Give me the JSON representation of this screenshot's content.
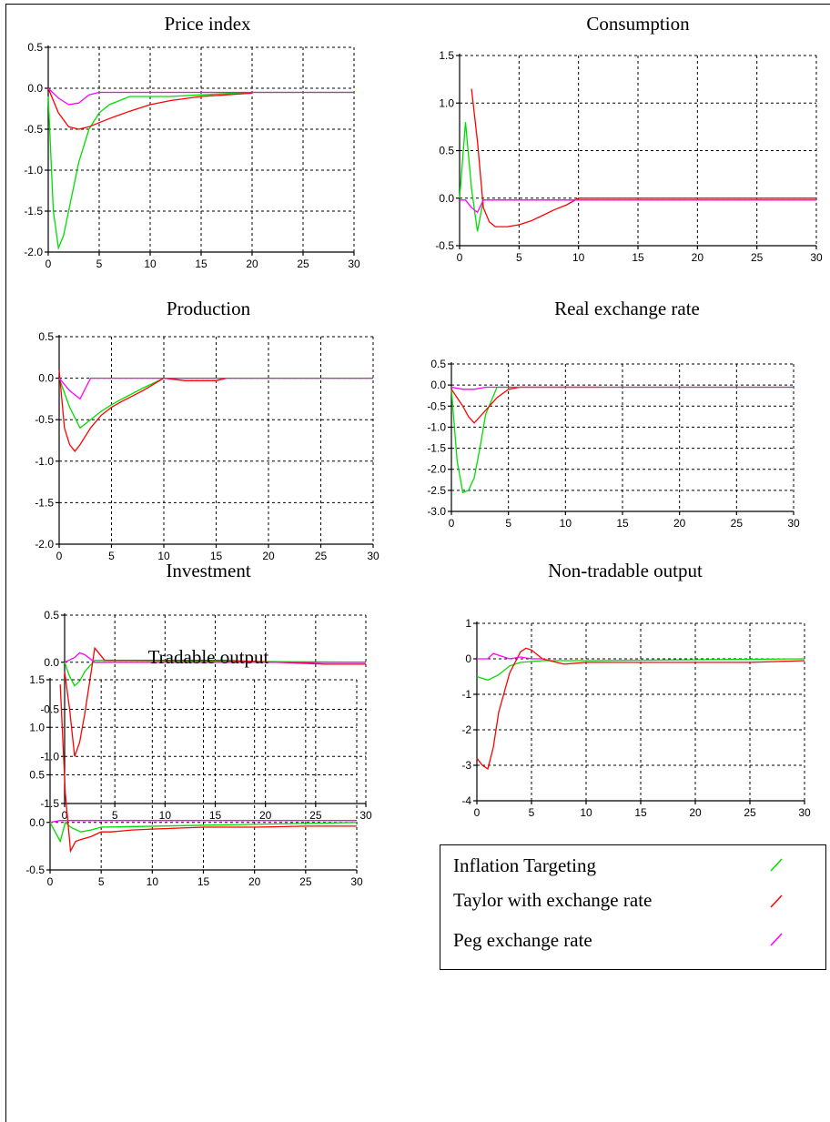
{
  "legend": {
    "items": [
      {
        "label": "Inflation Targeting",
        "color": "#00dd00"
      },
      {
        "label": "Taylor with exchange rate",
        "color": "#ff0000"
      },
      {
        "label": "Peg exchange rate",
        "color": "#ff00ff"
      }
    ]
  },
  "chart_data": [
    {
      "type": "line",
      "title": "Price index",
      "xlim": [
        0,
        30
      ],
      "ylim": [
        -2.0,
        0.5
      ],
      "xticks": [
        0,
        5,
        10,
        15,
        20,
        25,
        30
      ],
      "yticks": [
        0.5,
        0.0,
        -0.5,
        -1.0,
        -1.5,
        -2.0
      ],
      "xticklabels": [
        "0",
        "5",
        "10",
        "15",
        "20",
        "25",
        "30"
      ],
      "yticklabels": [
        "0.5",
        "0.0",
        "-0.5",
        "-1.0",
        "-1.5",
        "-2.0"
      ],
      "grid": true,
      "series": [
        {
          "color": "#00dd00",
          "x": [
            0,
            0.5,
            1,
            1.5,
            2,
            3,
            4,
            5,
            6,
            7,
            8,
            10,
            12,
            15,
            20,
            30
          ],
          "y": [
            -0.1,
            -1.5,
            -1.95,
            -1.8,
            -1.5,
            -0.9,
            -0.5,
            -0.3,
            -0.2,
            -0.15,
            -0.1,
            -0.1,
            -0.1,
            -0.08,
            -0.05,
            -0.05
          ]
        },
        {
          "color": "#ff0000",
          "x": [
            0,
            1,
            2,
            3,
            4,
            5,
            6,
            8,
            10,
            12,
            15,
            20
          ],
          "y": [
            0,
            -0.3,
            -0.47,
            -0.5,
            -0.47,
            -0.42,
            -0.37,
            -0.28,
            -0.2,
            -0.15,
            -0.1,
            -0.06
          ]
        },
        {
          "color": "#ff00ff",
          "x": [
            0,
            1,
            2,
            3,
            4,
            5,
            6,
            30
          ],
          "y": [
            0,
            -0.12,
            -0.2,
            -0.18,
            -0.08,
            -0.05,
            -0.05,
            -0.05
          ]
        }
      ]
    },
    {
      "type": "line",
      "title": "Consumption",
      "xlim": [
        0,
        30
      ],
      "ylim": [
        -0.5,
        1.5
      ],
      "xticks": [
        0,
        5,
        10,
        15,
        20,
        25,
        30
      ],
      "yticks": [
        1.5,
        1.0,
        0.5,
        0.0,
        -0.5
      ],
      "xticklabels": [
        "0",
        "5",
        "10",
        "15",
        "20",
        "25",
        "30"
      ],
      "yticklabels": [
        "1.5",
        "1.0",
        "0.5",
        "0.0",
        "-0.5"
      ],
      "grid": true,
      "series": [
        {
          "color": "#00dd00",
          "x": [
            0,
            0.5,
            1,
            1.5,
            2,
            3,
            30
          ],
          "y": [
            0,
            0.8,
            0.1,
            -0.35,
            -0.02,
            -0.02,
            -0.02
          ]
        },
        {
          "color": "#ff0000",
          "x": [
            1,
            1.5,
            2,
            2.5,
            3,
            4,
            5,
            6,
            7,
            8,
            9,
            10,
            30
          ],
          "y": [
            1.15,
            0.6,
            -0.1,
            -0.25,
            -0.3,
            -0.3,
            -0.28,
            -0.24,
            -0.18,
            -0.12,
            -0.07,
            0,
            0
          ]
        },
        {
          "color": "#ff00ff",
          "x": [
            0,
            0.5,
            1,
            1.5,
            2,
            30
          ],
          "y": [
            -0.02,
            -0.02,
            -0.1,
            -0.15,
            -0.02,
            -0.02
          ]
        }
      ]
    },
    {
      "type": "line",
      "title": "Production",
      "xlim": [
        0,
        30
      ],
      "ylim": [
        -2.0,
        0.5
      ],
      "xticks": [
        0,
        5,
        10,
        15,
        20,
        25,
        30
      ],
      "yticks": [
        0.5,
        0.0,
        -0.5,
        -1.0,
        -1.5,
        -2.0
      ],
      "xticklabels": [
        "0",
        "5",
        "10",
        "15",
        "20",
        "25",
        "30"
      ],
      "yticklabels": [
        "0.5",
        "0.0",
        "-0.5",
        "-1.0",
        "-1.5",
        "-2.0"
      ],
      "grid": true,
      "series": [
        {
          "color": "#00dd00",
          "x": [
            0,
            1,
            2,
            3,
            4,
            5,
            6,
            8,
            10,
            30
          ],
          "y": [
            0,
            -0.35,
            -0.6,
            -0.5,
            -0.4,
            -0.32,
            -0.25,
            -0.12,
            0,
            0
          ]
        },
        {
          "color": "#ff0000",
          "x": [
            0,
            0.5,
            1,
            1.5,
            2,
            3,
            4,
            5,
            6,
            8,
            10,
            12,
            15,
            16
          ],
          "y": [
            0.1,
            -0.6,
            -0.8,
            -0.88,
            -0.8,
            -0.6,
            -0.45,
            -0.35,
            -0.28,
            -0.15,
            0,
            -0.03,
            -0.03,
            0
          ]
        },
        {
          "color": "#ff00ff",
          "x": [
            0,
            1,
            2,
            3,
            30
          ],
          "y": [
            0,
            -0.15,
            -0.25,
            0,
            0
          ]
        }
      ]
    },
    {
      "type": "line",
      "title": "Real exchange rate",
      "xlim": [
        0,
        30
      ],
      "ylim": [
        -3.0,
        0.5
      ],
      "xticks": [
        0,
        5,
        10,
        15,
        20,
        25,
        30
      ],
      "yticks": [
        0.5,
        0.0,
        -0.5,
        -1.0,
        -1.5,
        -2.0,
        -2.5,
        -3.0
      ],
      "xticklabels": [
        "0",
        "5",
        "10",
        "15",
        "20",
        "25",
        "30"
      ],
      "yticklabels": [
        "0.5",
        "0.0",
        "-0.5",
        "-1.0",
        "-1.5",
        "-2.0",
        "-2.5",
        "-3.0"
      ],
      "grid": true,
      "series": [
        {
          "color": "#00dd00",
          "x": [
            0,
            0.5,
            1,
            1.5,
            2,
            2.5,
            3,
            4,
            30
          ],
          "y": [
            -0.1,
            -1.8,
            -2.55,
            -2.5,
            -2.2,
            -1.5,
            -0.7,
            -0.05,
            -0.05
          ]
        },
        {
          "color": "#ff0000",
          "x": [
            0,
            1,
            1.5,
            2,
            3,
            4,
            5,
            6,
            13
          ],
          "y": [
            -0.1,
            -0.5,
            -0.75,
            -0.9,
            -0.6,
            -0.3,
            -0.1,
            -0.05,
            -0.05
          ]
        },
        {
          "color": "#ff00ff",
          "x": [
            0,
            1,
            2,
            3,
            30
          ],
          "y": [
            -0.05,
            -0.1,
            -0.1,
            -0.05,
            -0.05
          ]
        }
      ]
    },
    {
      "type": "line",
      "title": "Investment",
      "xlim": [
        0,
        30
      ],
      "ylim": [
        -1.5,
        0.5
      ],
      "xticks": [
        0,
        5,
        10,
        15,
        20,
        25,
        30
      ],
      "yticks": [
        0.5,
        0.0,
        -0.5,
        -1.0,
        -1.5
      ],
      "xticklabels": [
        "0",
        "5",
        "10",
        "15",
        "20",
        "25",
        "30"
      ],
      "yticklabels": [
        "0.5",
        "0.0",
        "-0.5",
        "-1.0",
        "-1.5"
      ],
      "grid": true,
      "series": [
        {
          "color": "#00dd00",
          "x": [
            0,
            0.5,
            1,
            1.5,
            2,
            3,
            4,
            30
          ],
          "y": [
            0,
            -0.15,
            -0.25,
            -0.2,
            -0.1,
            0.02,
            0.02,
            0
          ]
        },
        {
          "color": "#ff0000",
          "x": [
            0,
            0.5,
            1,
            1.5,
            2,
            2.5,
            3,
            4,
            8,
            16,
            26,
            30
          ],
          "y": [
            -0.1,
            -0.5,
            -1.0,
            -0.85,
            -0.55,
            -0.2,
            0.15,
            0.02,
            0.02,
            0.02,
            -0.02,
            -0.02
          ]
        },
        {
          "color": "#ff00ff",
          "x": [
            0,
            1,
            1.5,
            2,
            3,
            30
          ],
          "y": [
            0,
            0.05,
            0.1,
            0.08,
            0,
            0
          ]
        }
      ]
    },
    {
      "type": "line",
      "title": "Non-tradable output",
      "xlim": [
        0,
        30
      ],
      "ylim": [
        -4,
        1
      ],
      "xticks": [
        0,
        5,
        10,
        15,
        20,
        25,
        30
      ],
      "yticks": [
        1,
        0,
        -1,
        -2,
        -3,
        -4
      ],
      "xticklabels": [
        "0",
        "5",
        "10",
        "15",
        "20",
        "25",
        "30"
      ],
      "yticklabels": [
        "1",
        "0",
        "-1",
        "-2",
        "-3",
        "-4"
      ],
      "grid": true,
      "series": [
        {
          "color": "#00dd00",
          "x": [
            0,
            1,
            2,
            3,
            4,
            6,
            10,
            30
          ],
          "y": [
            -0.5,
            -0.6,
            -0.45,
            -0.2,
            -0.1,
            -0.05,
            -0.05,
            0
          ]
        },
        {
          "color": "#ff0000",
          "x": [
            0,
            0.5,
            1,
            1.5,
            2,
            3,
            4,
            4.5,
            5,
            6,
            8,
            10,
            25,
            30
          ],
          "y": [
            -2.8,
            -3.0,
            -3.1,
            -2.5,
            -1.5,
            -0.4,
            0.2,
            0.3,
            0.25,
            0,
            -0.15,
            -0.1,
            -0.1,
            -0.05
          ]
        },
        {
          "color": "#ff00ff",
          "x": [
            0,
            1,
            1.5,
            2,
            3,
            4,
            5,
            6
          ],
          "y": [
            0,
            0,
            0.15,
            0.1,
            0,
            0.05,
            0,
            0
          ]
        }
      ]
    },
    {
      "type": "line",
      "title": "Tradable output",
      "xlim": [
        0,
        30
      ],
      "ylim": [
        -0.5,
        1.5
      ],
      "xticks": [
        0,
        5,
        10,
        15,
        20,
        25,
        30
      ],
      "yticks": [
        1.5,
        1.0,
        0.5,
        0.0,
        -0.5
      ],
      "xticklabels": [
        "0",
        "5",
        "10",
        "15",
        "20",
        "25",
        "30"
      ],
      "yticklabels": [
        "1.5",
        "1.0",
        "0.5",
        "0.0",
        "-0.5"
      ],
      "grid": true,
      "series": [
        {
          "color": "#00dd00",
          "x": [
            0,
            0.5,
            1,
            1.5,
            2,
            3,
            4,
            5,
            30
          ],
          "y": [
            0,
            -0.1,
            -0.2,
            0,
            -0.05,
            -0.1,
            -0.08,
            -0.05,
            0
          ]
        },
        {
          "color": "#ff0000",
          "x": [
            1,
            1.5,
            2,
            2.5,
            3,
            4,
            5,
            6,
            8,
            10,
            15,
            20,
            25,
            30
          ],
          "y": [
            1.45,
            0.3,
            -0.3,
            -0.2,
            -0.18,
            -0.15,
            -0.1,
            -0.1,
            -0.08,
            -0.07,
            -0.05,
            -0.05,
            -0.04,
            -0.04
          ]
        },
        {
          "color": "#ff00ff",
          "x": [
            0,
            1,
            2,
            3,
            4,
            5,
            30
          ],
          "y": [
            0,
            0.02,
            0.02,
            0.02,
            0.02,
            0.02,
            0.02
          ]
        }
      ]
    }
  ]
}
